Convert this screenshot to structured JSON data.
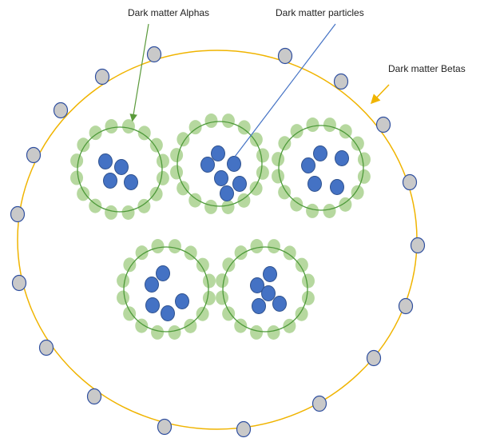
{
  "labels": {
    "alphas": "Dark matter Alphas",
    "particles": "Dark matter particles",
    "betas": "Dark matter Betas"
  }
}
